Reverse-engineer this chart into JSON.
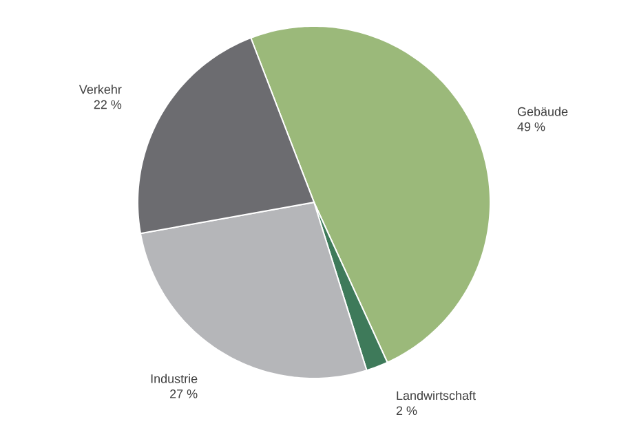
{
  "chart_data": {
    "type": "pie",
    "categories": [
      "Gebäude",
      "Landwirtschaft",
      "Industrie",
      "Verkehr"
    ],
    "values": [
      49,
      2,
      27,
      22
    ],
    "colors": [
      "#9bb97a",
      "#3e7a5a",
      "#b5b6b9",
      "#6c6c70"
    ],
    "value_labels": [
      "49 %",
      "2 %",
      "27 %",
      "22 %"
    ]
  }
}
